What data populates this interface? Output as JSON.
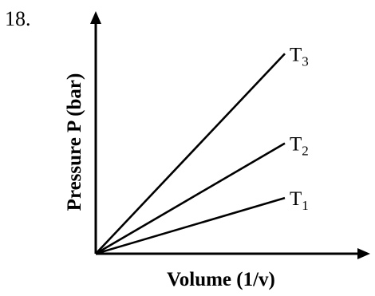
{
  "question_number": "18.",
  "chart_data": {
    "type": "line",
    "xlabel": "Volume (1/v)",
    "ylabel": "Pressure P (bar)",
    "series": [
      {
        "name": "T",
        "sub": "3",
        "x": [
          0,
          1
        ],
        "y": [
          0,
          1.83
        ]
      },
      {
        "name": "T",
        "sub": "2",
        "x": [
          0,
          1
        ],
        "y": [
          0,
          1.01
        ]
      },
      {
        "name": "T",
        "sub": "1",
        "x": [
          0,
          1
        ],
        "y": [
          0,
          0.51
        ]
      }
    ],
    "axis_arrows": true,
    "grid": false
  },
  "colors": {
    "ink": "#000000",
    "background": "#ffffff"
  }
}
